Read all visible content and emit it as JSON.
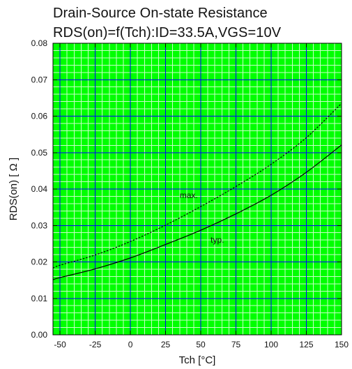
{
  "chart_data": {
    "type": "line",
    "title": "Drain-Source On-state Resistance",
    "subtitle": "RDS(on)=f(Tch):ID=33.5A,VGS=10V",
    "xlabel": "Tch [°C]",
    "ylabel": "RDS(on) [ Ω ]",
    "xlim": [
      -55,
      150
    ],
    "ylim": [
      0,
      0.08
    ],
    "x_ticks": [
      -50,
      -25,
      0,
      25,
      50,
      75,
      100,
      125,
      150
    ],
    "x_tick_labels": [
      "-50",
      "-25",
      "0",
      "25",
      "50",
      "75",
      "100",
      "125",
      "150"
    ],
    "y_ticks": [
      0,
      0.01,
      0.02,
      0.03,
      0.04,
      0.05,
      0.06,
      0.07,
      0.08
    ],
    "y_tick_labels": [
      "0.00",
      "0.01",
      "0.02",
      "0.03",
      "0.04",
      "0.05",
      "0.06",
      "0.07",
      "0.08"
    ],
    "grid": true,
    "colors": {
      "background": "#00ff00",
      "minor_grid": "#c8ffc8",
      "major_grid": "#0000ff",
      "line": "#000000"
    },
    "series": [
      {
        "name": "max.",
        "style": "dashed",
        "x": [
          -55,
          -50,
          -25,
          0,
          25,
          50,
          75,
          100,
          125,
          150
        ],
        "y": [
          0.0183,
          0.0191,
          0.0219,
          0.0256,
          0.0301,
          0.0352,
          0.0407,
          0.0468,
          0.0541,
          0.0635
        ]
      },
      {
        "name": "typ.",
        "style": "solid",
        "x": [
          -55,
          -50,
          -25,
          0,
          25,
          50,
          75,
          100,
          125,
          150
        ],
        "y": [
          0.0151,
          0.0157,
          0.0181,
          0.0211,
          0.0248,
          0.0287,
          0.0332,
          0.0383,
          0.0446,
          0.0521
        ]
      }
    ],
    "annotations": [
      {
        "text": "max.",
        "x": 35,
        "y": 0.0375
      },
      {
        "text": "typ.",
        "x": 57,
        "y": 0.0253
      }
    ]
  }
}
